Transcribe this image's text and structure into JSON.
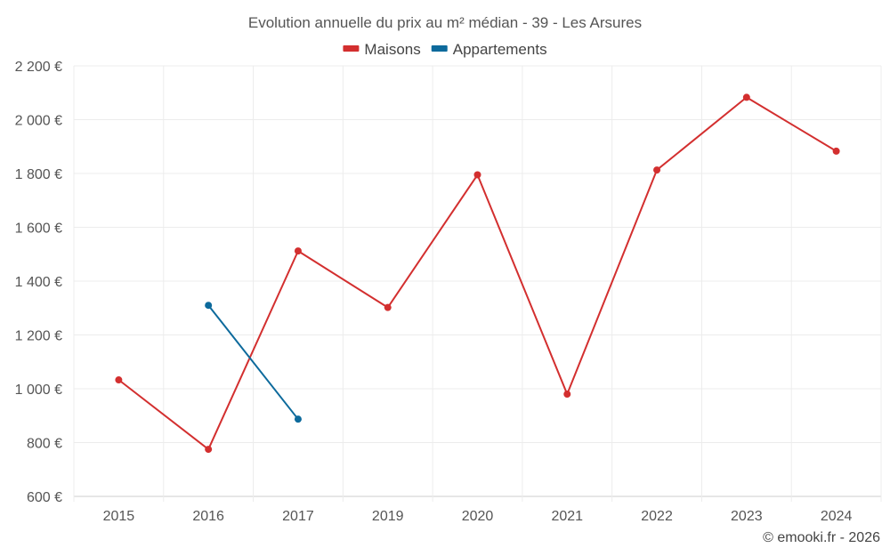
{
  "chart_data": {
    "type": "line",
    "title": "Evolution annuelle du prix au m² médian - 39 - Les Arsures",
    "categories": [
      "2015",
      "2016",
      "2017",
      "2019",
      "2020",
      "2021",
      "2022",
      "2023",
      "2024"
    ],
    "series": [
      {
        "name": "Maisons",
        "color": "#d32f2f",
        "values": [
          1033,
          775,
          1512,
          1302,
          1795,
          980,
          1813,
          2083,
          1883
        ]
      },
      {
        "name": "Appartements",
        "color": "#0d6a9c",
        "values": [
          null,
          1310,
          887,
          null,
          null,
          null,
          null,
          null,
          null
        ]
      }
    ],
    "y_ticks": [
      "600 €",
      "800 €",
      "1 000 €",
      "1 200 €",
      "1 400 €",
      "1 600 €",
      "1 800 €",
      "2 000 €",
      "2 200 €"
    ],
    "ylim": [
      600,
      2200
    ],
    "y_step": 200,
    "grid": true,
    "legend_position": "top-center",
    "xlabel": "",
    "ylabel": ""
  },
  "credit": "© emooki.fr - 2026"
}
